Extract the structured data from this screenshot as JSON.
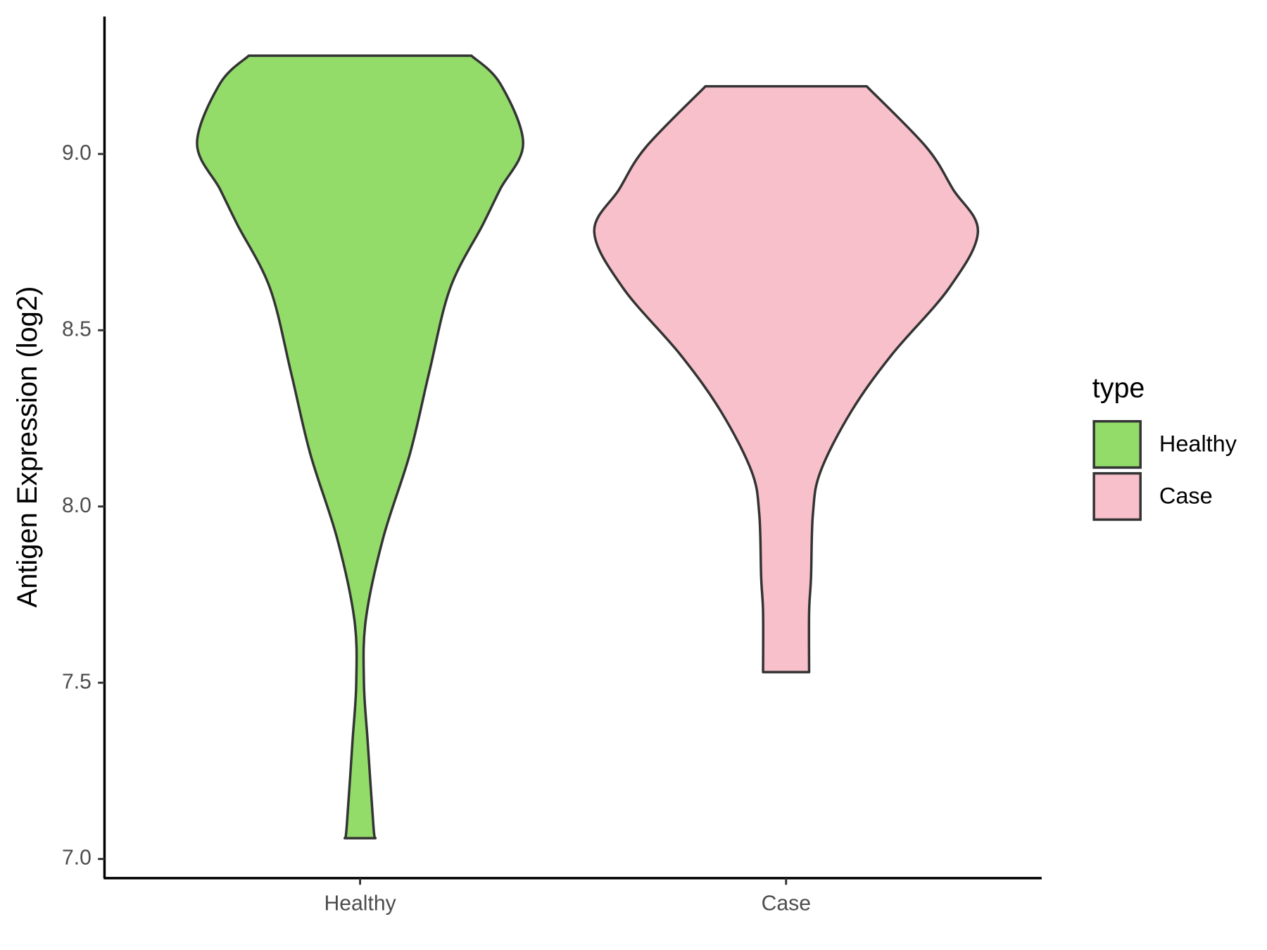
{
  "chart_data": {
    "type": "violin",
    "y_label": "Antigen Expression (log2)",
    "categories": [
      "Healthy",
      "Case"
    ],
    "legend_title": "type",
    "legend_position": "right",
    "ylim": [
      6.948,
      9.39
    ],
    "yticks": [
      {
        "value": 7,
        "label": "7.0"
      },
      7.5,
      {
        "value": 8,
        "label": "8.0"
      },
      8.5,
      {
        "value": 9,
        "label": "9.0"
      }
    ],
    "series": [
      {
        "name": "Healthy",
        "color": "#93dc6a",
        "y": [
          9.279,
          9.2,
          9.03,
          8.9,
          8.8,
          8.62,
          8.38,
          8.15,
          7.91,
          7.68,
          7.5,
          7.33,
          7.09,
          7.059
        ],
        "density": [
          0.58,
          0.73,
          0.85,
          0.73,
          0.64,
          0.47,
          0.36,
          0.26,
          0.12,
          0.03,
          0.02,
          0.04,
          0.07,
          0.08
        ]
      },
      {
        "name": "Case",
        "color": "#f8c0cb",
        "y": [
          9.192,
          9.02,
          8.9,
          8.78,
          8.62,
          8.43,
          8.27,
          8.1,
          7.98,
          7.8,
          7.7,
          7.53
        ],
        "density": [
          0.42,
          0.73,
          0.87,
          1.0,
          0.85,
          0.55,
          0.34,
          0.18,
          0.14,
          0.13,
          0.12,
          0.12
        ]
      }
    ]
  }
}
